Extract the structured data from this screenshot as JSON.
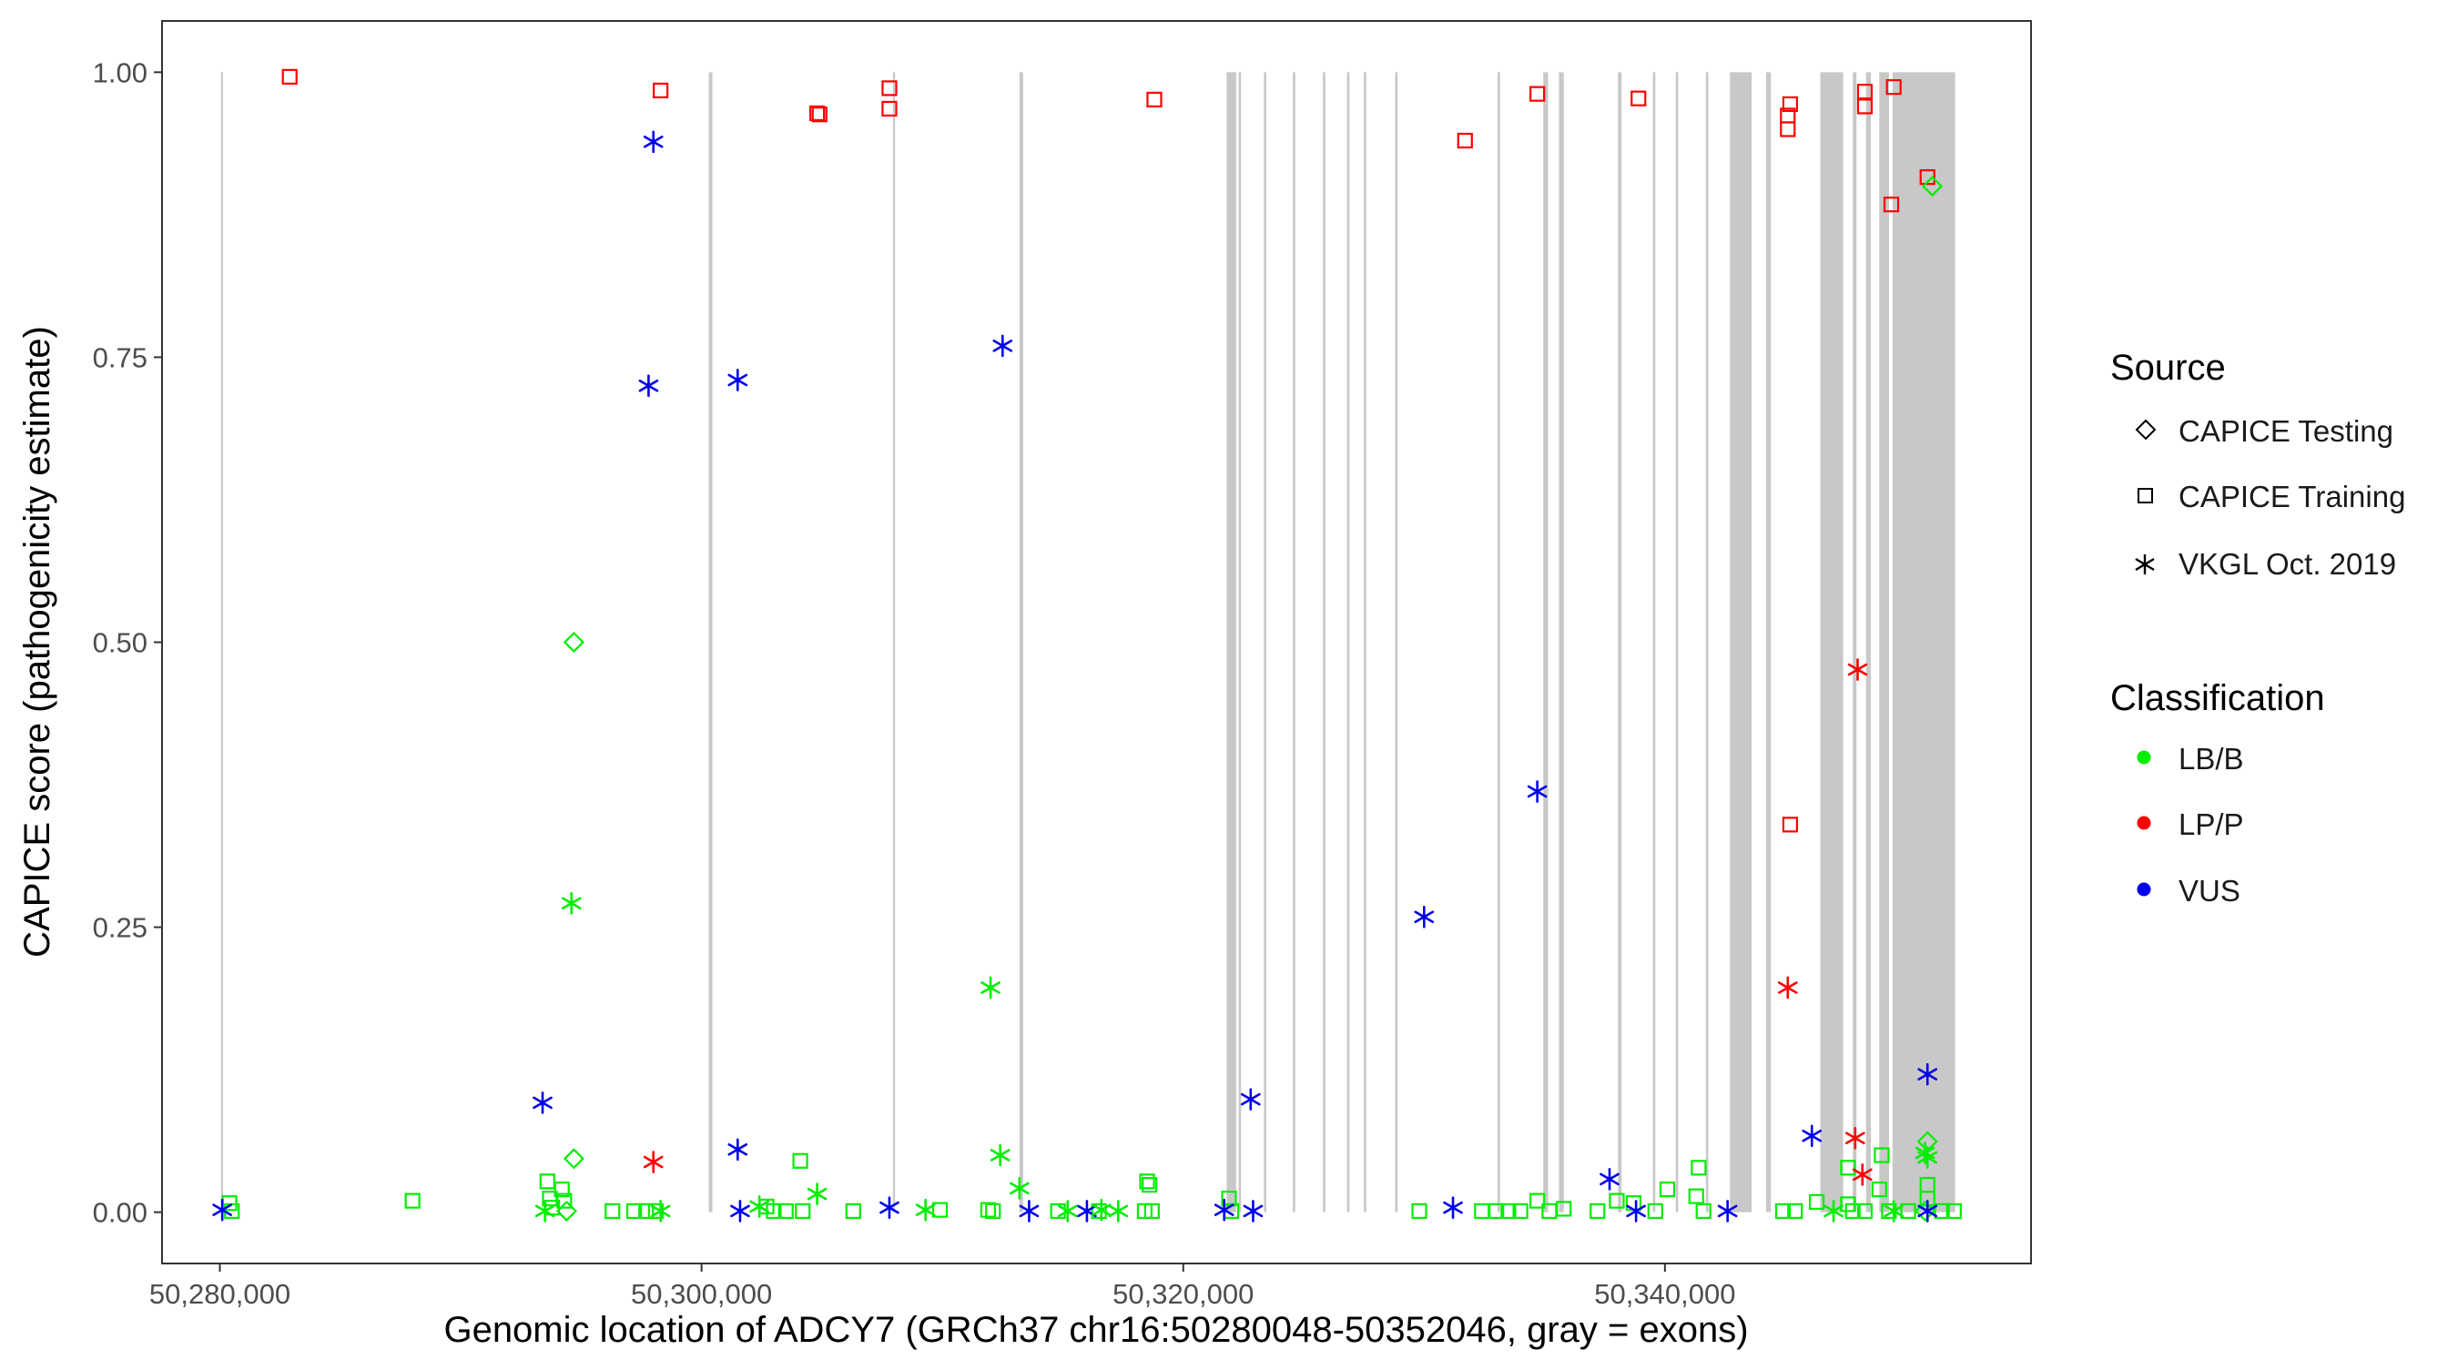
{
  "chart_data": {
    "type": "scatter",
    "title": "",
    "xlabel": "Genomic location of ADCY7 (GRCh37 chr16:50280048-50352046, gray = exons)",
    "ylabel": "CAPICE score (pathogenicity estimate)",
    "xlim": [
      50277600,
      50355200
    ],
    "ylim": [
      -0.045,
      1.045
    ],
    "x_ticks": [
      50280000,
      50300000,
      50320000,
      50340000
    ],
    "x_tick_labels": [
      "50,280,000",
      "50,300,000",
      "50,320,000",
      "50,340,000"
    ],
    "y_ticks": [
      0,
      0.25,
      0.5,
      0.75,
      1.0
    ],
    "y_tick_labels": [
      "0.00",
      "0.25",
      "0.50",
      "0.75",
      "1.00"
    ],
    "grid": false,
    "exons": [
      [
        50280048,
        50280100
      ],
      [
        50300300,
        50300450
      ],
      [
        50307950,
        50308000
      ],
      [
        50313200,
        50313350
      ],
      [
        50321800,
        50322200
      ],
      [
        50322300,
        50322400
      ],
      [
        50323350,
        50323450
      ],
      [
        50324550,
        50324650
      ],
      [
        50325800,
        50325900
      ],
      [
        50326800,
        50326900
      ],
      [
        50327500,
        50327600
      ],
      [
        50328800,
        50328900
      ],
      [
        50333050,
        50333150
      ],
      [
        50334950,
        50335150
      ],
      [
        50335600,
        50335800
      ],
      [
        50338050,
        50338200
      ],
      [
        50339500,
        50339600
      ],
      [
        50340450,
        50340550
      ],
      [
        50341700,
        50341800
      ],
      [
        50342700,
        50343600
      ],
      [
        50344200,
        50344400
      ],
      [
        50346450,
        50347400
      ],
      [
        50347800,
        50347950
      ],
      [
        50348350,
        50348550
      ],
      [
        50348900,
        50349300
      ],
      [
        50349450,
        50352046
      ]
    ],
    "legend": {
      "position": "right",
      "source_title": "Source",
      "source_items": [
        {
          "label": "CAPICE Testing",
          "shape": "diamond"
        },
        {
          "label": "CAPICE Training",
          "shape": "square"
        },
        {
          "label": "VKGL Oct. 2019",
          "shape": "asterisk"
        }
      ],
      "class_title": "Classification",
      "class_items": [
        {
          "label": "LB/B",
          "color": "#00ee00"
        },
        {
          "label": "LP/P",
          "color": "#ff0000"
        },
        {
          "label": "VUS",
          "color": "#0000ee"
        }
      ]
    },
    "colors": {
      "LB/B": "#00ee00",
      "LP/P": "#ff0000",
      "VUS": "#0000ee",
      "exon": "#c8c8c8"
    },
    "series": [
      {
        "name": "CAPICE Training",
        "shape": "square",
        "points": [
          [
            50282900,
            0.996,
            "LP/P"
          ],
          [
            50298300,
            0.984,
            "LP/P"
          ],
          [
            50304800,
            0.964,
            "LP/P"
          ],
          [
            50304900,
            0.963,
            "LP/P"
          ],
          [
            50307800,
            0.986,
            "LP/P"
          ],
          [
            50307800,
            0.968,
            "LP/P"
          ],
          [
            50318800,
            0.976,
            "LP/P"
          ],
          [
            50331700,
            0.94,
            "LP/P"
          ],
          [
            50334700,
            0.981,
            "LP/P"
          ],
          [
            50338900,
            0.977,
            "LP/P"
          ],
          [
            50345200,
            0.972,
            "LP/P"
          ],
          [
            50345100,
            0.962,
            "LP/P"
          ],
          [
            50345100,
            0.95,
            "LP/P"
          ],
          [
            50348300,
            0.983,
            "LP/P"
          ],
          [
            50348300,
            0.97,
            "LP/P"
          ],
          [
            50349500,
            0.987,
            "LP/P"
          ],
          [
            50349400,
            0.884,
            "LP/P"
          ],
          [
            50350900,
            0.908,
            "LP/P"
          ],
          [
            50345200,
            0.34,
            "LP/P"
          ],
          [
            50280400,
            0.008,
            "LB/B"
          ],
          [
            50280500,
            0.001,
            "LB/B"
          ],
          [
            50288000,
            0.01,
            "LB/B"
          ],
          [
            50293600,
            0.027,
            "LB/B"
          ],
          [
            50293700,
            0.012,
            "LB/B"
          ],
          [
            50293800,
            0.004,
            "LB/B"
          ],
          [
            50294200,
            0.02,
            "LB/B"
          ],
          [
            50294300,
            0.01,
            "LB/B"
          ],
          [
            50296300,
            0.001,
            "LB/B"
          ],
          [
            50297200,
            0.001,
            "LB/B"
          ],
          [
            50297700,
            0.001,
            "LB/B"
          ],
          [
            50298100,
            0.001,
            "LB/B"
          ],
          [
            50302700,
            0.005,
            "LB/B"
          ],
          [
            50303000,
            0.001,
            "LB/B"
          ],
          [
            50303500,
            0.001,
            "LB/B"
          ],
          [
            50304100,
            0.045,
            "LB/B"
          ],
          [
            50304200,
            0.001,
            "LB/B"
          ],
          [
            50306300,
            0.001,
            "LB/B"
          ],
          [
            50309900,
            0.002,
            "LB/B"
          ],
          [
            50311900,
            0.002,
            "LB/B"
          ],
          [
            50312100,
            0.001,
            "LB/B"
          ],
          [
            50314800,
            0.001,
            "LB/B"
          ],
          [
            50316500,
            0.001,
            "LB/B"
          ],
          [
            50318500,
            0.027,
            "LB/B"
          ],
          [
            50318600,
            0.024,
            "LB/B"
          ],
          [
            50318400,
            0.001,
            "LB/B"
          ],
          [
            50318700,
            0.001,
            "LB/B"
          ],
          [
            50321900,
            0.012,
            "LB/B"
          ],
          [
            50322000,
            0.001,
            "LB/B"
          ],
          [
            50329800,
            0.001,
            "LB/B"
          ],
          [
            50332400,
            0.001,
            "LB/B"
          ],
          [
            50333000,
            0.001,
            "LB/B"
          ],
          [
            50333500,
            0.001,
            "LB/B"
          ],
          [
            50334000,
            0.001,
            "LB/B"
          ],
          [
            50334700,
            0.01,
            "LB/B"
          ],
          [
            50335200,
            0.001,
            "LB/B"
          ],
          [
            50335800,
            0.003,
            "LB/B"
          ],
          [
            50337200,
            0.001,
            "LB/B"
          ],
          [
            50338000,
            0.01,
            "LB/B"
          ],
          [
            50338700,
            0.008,
            "LB/B"
          ],
          [
            50339600,
            0.001,
            "LB/B"
          ],
          [
            50340100,
            0.02,
            "LB/B"
          ],
          [
            50341400,
            0.039,
            "LB/B"
          ],
          [
            50341300,
            0.014,
            "LB/B"
          ],
          [
            50341600,
            0.001,
            "LB/B"
          ],
          [
            50344900,
            0.001,
            "LB/B"
          ],
          [
            50345400,
            0.001,
            "LB/B"
          ],
          [
            50346300,
            0.009,
            "LB/B"
          ],
          [
            50347600,
            0.039,
            "LB/B"
          ],
          [
            50347600,
            0.007,
            "LB/B"
          ],
          [
            50347800,
            0.001,
            "LB/B"
          ],
          [
            50348300,
            0.001,
            "LB/B"
          ],
          [
            50348900,
            0.02,
            "LB/B"
          ],
          [
            50349000,
            0.05,
            "LB/B"
          ],
          [
            50349300,
            0.001,
            "LB/B"
          ],
          [
            50350100,
            0.001,
            "LB/B"
          ],
          [
            50350900,
            0.024,
            "LB/B"
          ],
          [
            50350900,
            0.012,
            "LB/B"
          ],
          [
            50351500,
            0.001,
            "LB/B"
          ],
          [
            50352000,
            0.001,
            "LB/B"
          ]
        ]
      },
      {
        "name": "CAPICE Testing",
        "shape": "diamond",
        "points": [
          [
            50294700,
            0.5,
            "LB/B"
          ],
          [
            50294700,
            0.047,
            "LB/B"
          ],
          [
            50294400,
            0.001,
            "LB/B"
          ],
          [
            50350900,
            0.062,
            "LB/B"
          ],
          [
            50351100,
            0.9,
            "LB/B"
          ],
          [
            50350800,
            0.001,
            "LB/B"
          ]
        ]
      },
      {
        "name": "VKGL Oct. 2019",
        "shape": "asterisk",
        "points": [
          [
            50298000,
            0.939,
            "VUS"
          ],
          [
            50297800,
            0.725,
            "VUS"
          ],
          [
            50301500,
            0.73,
            "VUS"
          ],
          [
            50312500,
            0.76,
            "VUS"
          ],
          [
            50293400,
            0.096,
            "VUS"
          ],
          [
            50301500,
            0.055,
            "VUS"
          ],
          [
            50322800,
            0.099,
            "VUS"
          ],
          [
            50330000,
            0.259,
            "VUS"
          ],
          [
            50334700,
            0.369,
            "VUS"
          ],
          [
            50337700,
            0.029,
            "VUS"
          ],
          [
            50346100,
            0.067,
            "VUS"
          ],
          [
            50350900,
            0.121,
            "VUS"
          ],
          [
            50280100,
            0.002,
            "VUS"
          ],
          [
            50301600,
            0.001,
            "VUS"
          ],
          [
            50307800,
            0.004,
            "VUS"
          ],
          [
            50313600,
            0.001,
            "VUS"
          ],
          [
            50316000,
            0.001,
            "VUS"
          ],
          [
            50321700,
            0.002,
            "VUS"
          ],
          [
            50322900,
            0.001,
            "VUS"
          ],
          [
            50331200,
            0.004,
            "VUS"
          ],
          [
            50338800,
            0.001,
            "VUS"
          ],
          [
            50342600,
            0.001,
            "VUS"
          ],
          [
            50350900,
            0.001,
            "VUS"
          ],
          [
            50298000,
            0.044,
            "LP/P"
          ],
          [
            50345100,
            0.197,
            "LP/P"
          ],
          [
            50348000,
            0.476,
            "LP/P"
          ],
          [
            50347900,
            0.065,
            "LP/P"
          ],
          [
            50348200,
            0.033,
            "LP/P"
          ],
          [
            50294600,
            0.271,
            "LB/B"
          ],
          [
            50312000,
            0.197,
            "LB/B"
          ],
          [
            50312400,
            0.05,
            "LB/B"
          ],
          [
            50313200,
            0.021,
            "LB/B"
          ],
          [
            50304800,
            0.016,
            "LB/B"
          ],
          [
            50302400,
            0.005,
            "LB/B"
          ],
          [
            50293500,
            0.001,
            "LB/B"
          ],
          [
            50298300,
            0.001,
            "LB/B"
          ],
          [
            50309300,
            0.002,
            "LB/B"
          ],
          [
            50315200,
            0.001,
            "LB/B"
          ],
          [
            50316600,
            0.002,
            "LB/B"
          ],
          [
            50317300,
            0.001,
            "LB/B"
          ],
          [
            50347000,
            0.001,
            "LB/B"
          ],
          [
            50349500,
            0.001,
            "LB/B"
          ],
          [
            50350800,
            0.052,
            "LB/B"
          ],
          [
            50350900,
            0.048,
            "LB/B"
          ]
        ]
      }
    ]
  }
}
